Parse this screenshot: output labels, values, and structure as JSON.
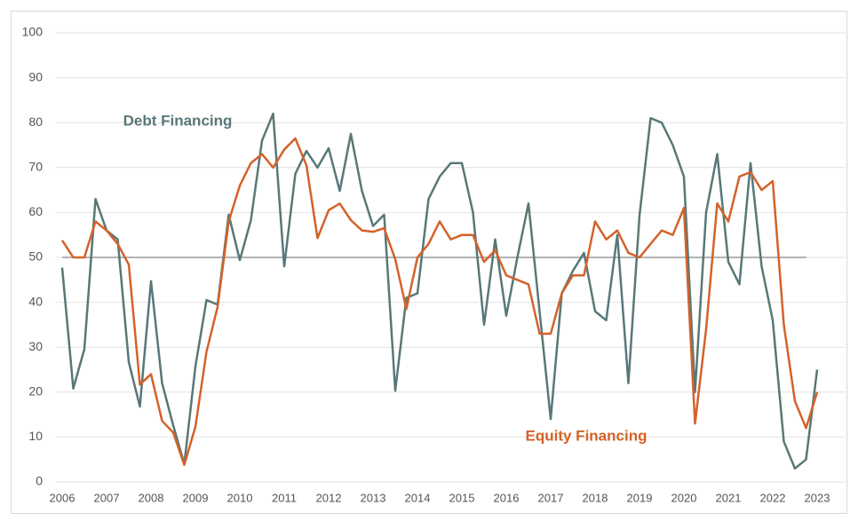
{
  "chart_data": {
    "type": "line",
    "x": [
      2006,
      2006.25,
      2006.5,
      2006.75,
      2007,
      2007.25,
      2007.5,
      2007.75,
      2008,
      2008.25,
      2008.5,
      2008.75,
      2009,
      2009.25,
      2009.5,
      2009.75,
      2010,
      2010.25,
      2010.5,
      2010.75,
      2011,
      2011.25,
      2011.5,
      2011.75,
      2012,
      2012.25,
      2012.5,
      2012.75,
      2013,
      2013.25,
      2013.5,
      2013.75,
      2014,
      2014.25,
      2014.5,
      2014.75,
      2015,
      2015.25,
      2015.5,
      2015.75,
      2016,
      2016.25,
      2016.5,
      2016.75,
      2017,
      2017.25,
      2017.5,
      2017.75,
      2018,
      2018.25,
      2018.5,
      2018.75,
      2019,
      2019.25,
      2019.5,
      2019.75,
      2020,
      2020.25,
      2020.5,
      2020.75,
      2021,
      2021.25,
      2021.5,
      2021.75,
      2022,
      2022.25,
      2022.5,
      2022.75,
      2023
    ],
    "series": [
      {
        "name": "Debt Financing",
        "color": "#587878",
        "values": [
          47.7,
          20.8,
          29.6,
          63,
          56,
          54,
          26.7,
          16.8,
          44.7,
          22,
          12.6,
          4,
          25.7,
          40.5,
          39.5,
          59.5,
          49.4,
          58.3,
          76,
          82,
          48,
          68.6,
          73.7,
          70,
          74.3,
          64.8,
          77.5,
          64.8,
          57,
          59.5,
          20.3,
          41,
          42,
          63,
          68,
          71,
          71,
          60,
          35,
          54,
          37,
          50,
          62,
          38,
          14,
          42,
          47,
          51,
          38,
          36,
          55,
          22,
          59.3,
          81,
          80,
          75,
          68,
          20,
          60,
          73,
          49,
          44,
          71,
          48,
          36,
          9,
          3,
          5,
          25
        ]
      },
      {
        "name": "Equity Financing",
        "color": "#d4622a",
        "values": [
          53.8,
          50,
          50,
          58,
          56,
          53,
          48.4,
          21.7,
          24,
          13.6,
          11,
          3.8,
          12.3,
          29,
          39,
          58,
          66,
          71,
          73,
          70,
          74,
          76.5,
          70.5,
          54.3,
          60.5,
          62,
          58.3,
          56,
          55.7,
          56.5,
          49.6,
          38.5,
          50,
          53,
          58,
          54,
          55,
          55,
          49,
          51.6,
          46,
          45,
          44,
          33,
          33,
          42,
          46,
          46,
          58,
          54,
          56,
          51,
          50,
          53,
          56,
          55,
          61,
          13,
          34,
          62,
          58,
          68,
          69,
          65,
          67,
          35,
          18,
          12,
          20
        ]
      }
    ],
    "xlim": [
      2006,
      2023
    ],
    "xticks": [
      2006,
      2007,
      2008,
      2009,
      2010,
      2011,
      2012,
      2013,
      2014,
      2015,
      2016,
      2017,
      2018,
      2019,
      2020,
      2021,
      2022,
      2023
    ],
    "ylim": [
      0,
      100
    ],
    "yticks": [
      0,
      10,
      20,
      30,
      40,
      50,
      60,
      70,
      80,
      90,
      100
    ],
    "reference_line": 50,
    "grid": true
  }
}
